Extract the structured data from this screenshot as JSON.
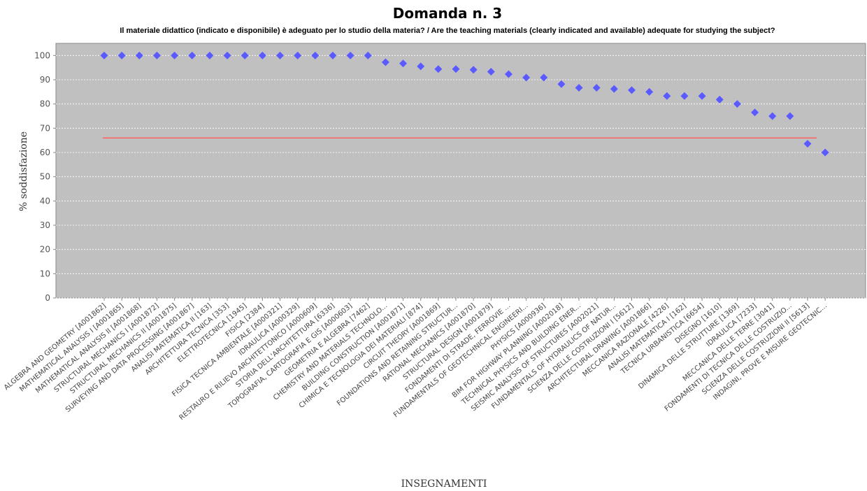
{
  "chart_data": {
    "type": "scatter",
    "title": "Domanda n. 3",
    "subtitle": "Il materiale didattico (indicato e disponibile) è adeguato per lo studio della materia? / Are the teaching materials (clearly indicated and available) adequate for studying the subject?",
    "xlabel": "INSEGNAMENTI",
    "ylabel": "% soddisfazione",
    "ylim": [
      0,
      105
    ],
    "yticks": [
      0,
      10,
      20,
      30,
      40,
      50,
      60,
      70,
      80,
      90,
      100
    ],
    "grid": true,
    "plot_background": "#c0c0c0",
    "marker_color": "#5a5aff",
    "reference_line": {
      "value": 66,
      "color": "#ff6060"
    },
    "categories": [
      "ALGEBRA AND GEOMETRY [A001862]",
      "MATHEMATICAL ANALYSIS I [A001865]",
      "MATHEMATICAL ANALYSIS II [A001868]",
      "STRUCTURAL MECHANICS I [A001872]",
      "STRUCTURAL MECHANICS II [A001875]",
      "SURVEYING AND DATA PROCESSING [A001867]",
      "ANALISI MATEMATICA II [163]",
      "ARCHITETTURA TECNICA [353]",
      "ELETTROTECNICA [1945]",
      "FISICA [2384]",
      "FISICA TECNICA AMBIENTALE [A000321]",
      "IDRAULICA [A000329]",
      "RESTAURO E RILIEVO ARCHITETTONICO [A000609]",
      "STORIA DELL'ARCHITETTURA [6336]",
      "TOPOGRAFIA, CARTOGRAFIA E GIS [A000603]",
      "GEOMETRIA E ALGEBRA [7462]",
      "CHEMISTRY AND MATERIALS TECHNOLO...",
      "BUILDING CONSTRUCTION [A001871]",
      "CHIMICA E TECNOLOGIA DEI MATERIALI [874]",
      "CIRCUIT THEORY [A001869]",
      "FOUNDATIONS AND RETAINING STRUCTUR...",
      "RATIONAL MECHANICS [A001870]",
      "STRUCTURAL DESIGN [A001879]",
      "FONDAMENTI DI STRADE, FERROVIE ...",
      "FUNDAMENTALS OF GEOTECHNICAL ENGINEERI...",
      "PHYSICS [A000936]",
      "BIM FOR HIGHWAY PLANNING [A002018]",
      "TECHNICAL PHYSICS AND BUILDING ENER...",
      "SEISMIC ANALYSIS OF STRUCTURES [A002021]",
      "FUNDAMENTALS OF HYDRAULICS OF NATUR...",
      "SCIENZA DELLE COSTRUZIONI I [5612]",
      "ARCHITECTURAL DRAWING [A001866]",
      "MECCANICA RAZIONALE [4226]",
      "ANALISI MATEMATICA I [162]",
      "TECNICA URBANISTICA [6654]",
      "DISEGNO [1610]",
      "DINAMICA DELLE STRUTTURE [1369]",
      "IDRAULICA [7233]",
      "MECCANICA DELLE TERRE [3041]",
      "FONDAMENTI DI TECNICA DELLE COSTRUZIO...",
      "SCIENZA DELLE COSTRUZIONI II [5613]",
      "INDAGINI, PROVE E MISURE GEOTECNIC..."
    ],
    "values": [
      100,
      100,
      100,
      100,
      100,
      100,
      100,
      100,
      100,
      100,
      100,
      100,
      100,
      100,
      100,
      100,
      97.2,
      96.7,
      95.5,
      94.4,
      94.4,
      94.1,
      93.3,
      92.3,
      90.9,
      90.9,
      88.2,
      86.7,
      86.7,
      86.2,
      85.7,
      85.0,
      83.3,
      83.3,
      83.3,
      81.8,
      80.0,
      76.5,
      75.0,
      75.0,
      63.6,
      60.0
    ]
  }
}
